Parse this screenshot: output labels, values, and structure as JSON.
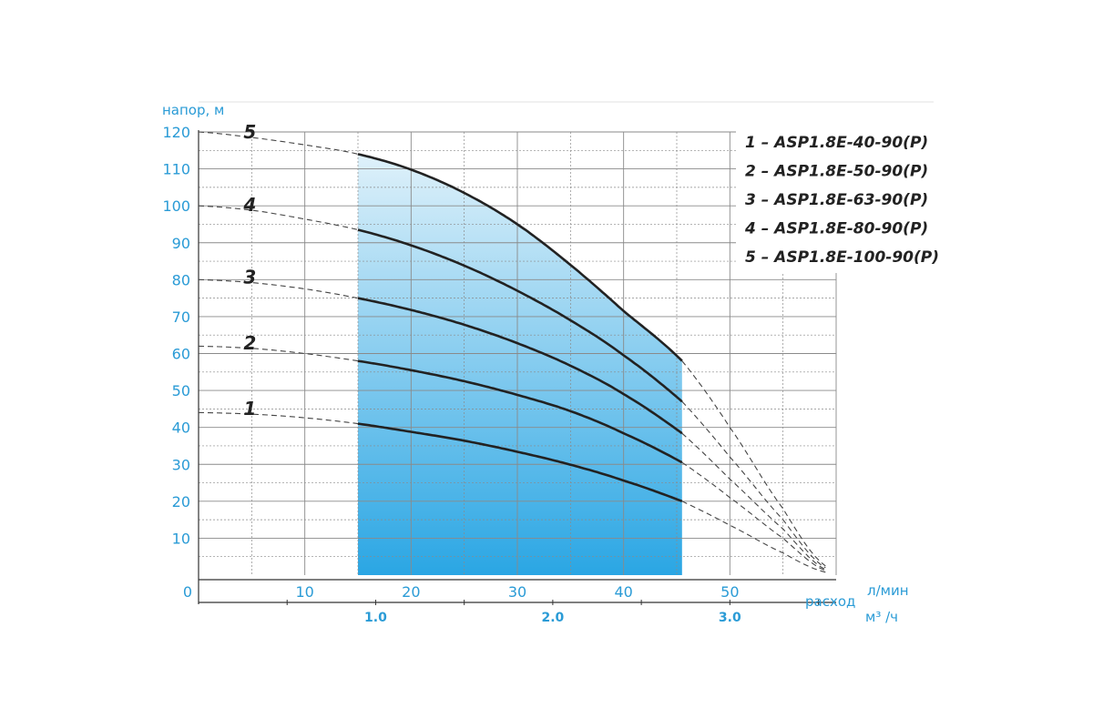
{
  "colors": {
    "axis_text": "#2a9bd6",
    "grid": "#8a8a8a",
    "curve": "#222222",
    "fill_top": "#dff1fa",
    "fill_bottom": "#2aa6e4"
  },
  "chart_data": {
    "type": "line",
    "title": "",
    "ylabel": "напор, м",
    "xlabel": "расход",
    "x_unit": "л/мин",
    "x2_unit": "м³ /ч",
    "xlim": [
      0,
      60
    ],
    "ylim": [
      0,
      120
    ],
    "yticks": [
      10,
      20,
      30,
      40,
      50,
      60,
      70,
      80,
      90,
      100,
      110,
      120
    ],
    "yticks_labels": [
      "10",
      "20",
      "30",
      "40",
      "50",
      "60",
      "70",
      "80",
      "90",
      "100",
      "110",
      "120"
    ],
    "xticks": [
      10,
      20,
      30,
      40,
      50
    ],
    "xticks_labels": [
      "10",
      "20",
      "30",
      "40",
      "50"
    ],
    "origin_label": "0",
    "x2ticks_m3h": [
      1.0,
      2.0,
      3.0
    ],
    "x2ticks_labels": [
      "1.0",
      "2.0",
      "3.0"
    ],
    "grid": true,
    "legend_position": "top-right",
    "working_range": [
      15,
      45.5
    ],
    "series": [
      {
        "label": "1",
        "name": "1 – ASP1.8E-40-90(P)",
        "x": [
          0,
          5,
          10,
          15,
          20,
          25,
          30,
          35,
          40,
          45.5,
          50,
          55,
          59
        ],
        "y": [
          44,
          43.6,
          42.6,
          41,
          38.8,
          36.4,
          33.4,
          29.9,
          25.6,
          20,
          13.5,
          6,
          0.8
        ]
      },
      {
        "label": "2",
        "name": "2 – ASP1.8E-50-90(P)",
        "x": [
          0,
          5,
          10,
          15,
          20,
          25,
          30,
          35,
          40,
          45.5,
          50,
          55,
          59
        ],
        "y": [
          62,
          61.4,
          60,
          58,
          55.5,
          52.5,
          48.8,
          44.4,
          38.4,
          30.5,
          21,
          10,
          1.2
        ]
      },
      {
        "label": "3",
        "name": "3 – ASP1.8E-63-90(P)",
        "x": [
          0,
          5,
          10,
          15,
          20,
          25,
          30,
          35,
          40,
          45.5,
          50,
          55,
          59
        ],
        "y": [
          80,
          79.2,
          77.5,
          75,
          71.8,
          67.8,
          62.8,
          56.7,
          49,
          38.4,
          26,
          12.5,
          1.5
        ]
      },
      {
        "label": "4",
        "name": "4 – ASP1.8E-80-90(P)",
        "x": [
          0,
          5,
          10,
          15,
          20,
          25,
          30,
          35,
          40,
          45.5,
          50,
          55,
          59
        ],
        "y": [
          100,
          98.8,
          96.4,
          93.5,
          89.3,
          83.8,
          77,
          69,
          59.5,
          47,
          32,
          15,
          2
        ]
      },
      {
        "label": "5",
        "name": "5 – ASP1.8E-100-90(P)",
        "x": [
          0,
          5,
          10,
          15,
          20,
          25,
          30,
          35,
          40,
          45.5,
          50,
          55,
          59
        ],
        "y": [
          120,
          118.5,
          116.5,
          114,
          109.8,
          103.5,
          95,
          84,
          71.5,
          58,
          40,
          18,
          2.5
        ]
      }
    ]
  }
}
